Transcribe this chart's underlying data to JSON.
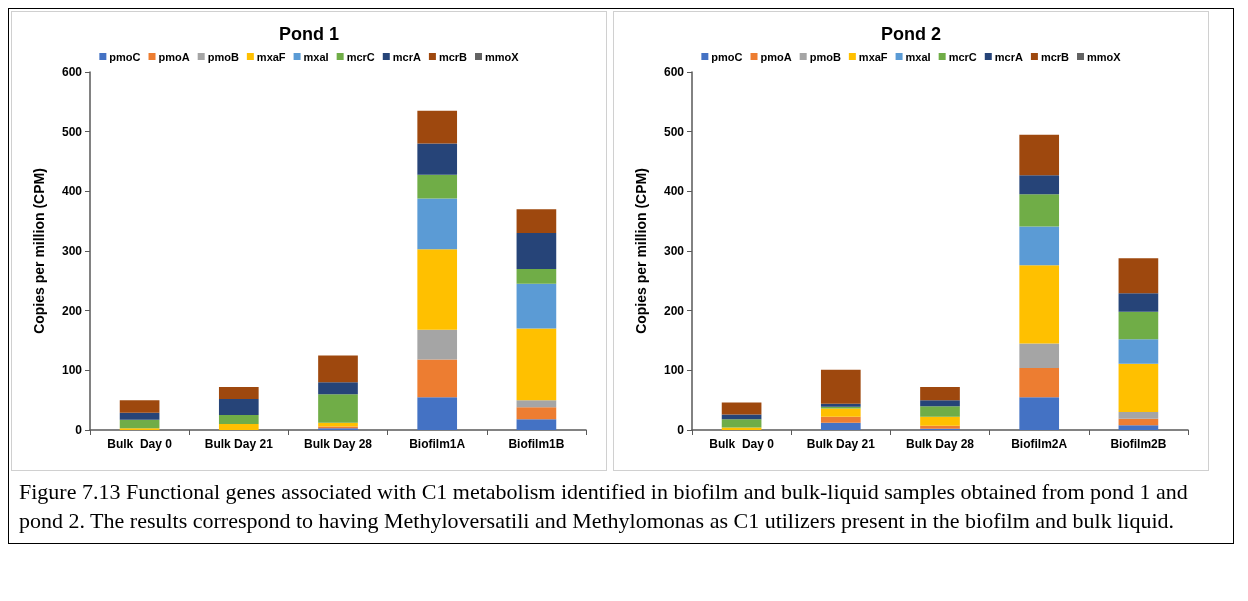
{
  "chart_data": [
    {
      "type": "bar",
      "title": "Pond 1",
      "ylabel": "Copies per million (CPM)",
      "stacked": true,
      "legend": "top",
      "grid": false,
      "categories": [
        "Bulk  Day 0",
        "Bulk Day 21",
        "Bulk Day 28",
        "Biofilm1A",
        "Biofilm1B"
      ],
      "ylim": [
        0,
        600
      ],
      "yticks": [
        0,
        100,
        200,
        300,
        400,
        500,
        600
      ],
      "series": [
        {
          "name": "pmoC",
          "color": "#4472c4",
          "values": [
            0,
            0,
            3,
            55,
            18
          ]
        },
        {
          "name": "pmoA",
          "color": "#ed7d31",
          "values": [
            0,
            0,
            3,
            63,
            20
          ]
        },
        {
          "name": "pmoB",
          "color": "#a5a5a5",
          "values": [
            0,
            0,
            null,
            50,
            12
          ]
        },
        {
          "name": "mxaF",
          "color": "#ffc000",
          "values": [
            3,
            10,
            6,
            135,
            120
          ]
        },
        {
          "name": "mxaI",
          "color": "#5b9bd5",
          "values": [
            0,
            0,
            0,
            85,
            75
          ]
        },
        {
          "name": "mcrC",
          "color": "#70ad47",
          "values": [
            14,
            15,
            48,
            40,
            25
          ]
        },
        {
          "name": "mcrA",
          "color": "#264478",
          "values": [
            12,
            27,
            20,
            52,
            60
          ]
        },
        {
          "name": "mcrB",
          "color": "#9e480e",
          "values": [
            21,
            20,
            45,
            55,
            40
          ]
        },
        {
          "name": "mmoX",
          "color": "#636363",
          "values": [
            0,
            0,
            0,
            0,
            0
          ]
        }
      ],
      "annotations": [
        "Figure 7.13 Functional genes associated with C1 metabolism identified in biofilm and bulk-liquid samples obtained from pond 1 and pond 2.  The results correspond to having Methyloversatili and Methylomonas as C1 utilizers present in the biofilm and bulk liquid."
      ]
    },
    {
      "type": "bar",
      "title": "Pond 2",
      "ylabel": "Copies per million (CPM)",
      "stacked": true,
      "legend": "top",
      "grid": false,
      "categories": [
        "Bulk  Day 0",
        "Bulk Day 21",
        "Bulk Day 28",
        "Biofilm2A",
        "Biofilm2B"
      ],
      "ylim": [
        0,
        600
      ],
      "yticks": [
        0,
        100,
        200,
        300,
        400,
        500,
        600
      ],
      "series": [
        {
          "name": "pmoC",
          "color": "#4472c4",
          "values": [
            0,
            12,
            2,
            55,
            8
          ]
        },
        {
          "name": "pmoA",
          "color": "#ed7d31",
          "values": [
            0,
            10,
            5,
            49,
            11
          ]
        },
        {
          "name": "pmoB",
          "color": "#a5a5a5",
          "values": [
            0,
            null,
            0,
            41,
            11
          ]
        },
        {
          "name": "mxaF",
          "color": "#ffc000",
          "values": [
            4,
            14,
            15,
            131,
            81
          ]
        },
        {
          "name": "mxaI",
          "color": "#5b9bd5",
          "values": [
            0,
            0,
            0,
            65,
            41
          ]
        },
        {
          "name": "mcrC",
          "color": "#70ad47",
          "values": [
            14,
            3,
            18,
            54,
            46
          ]
        },
        {
          "name": "mcrA",
          "color": "#264478",
          "values": [
            8,
            5,
            10,
            32,
            31
          ]
        },
        {
          "name": "mcrB",
          "color": "#9e480e",
          "values": [
            20,
            57,
            22,
            68,
            59
          ]
        },
        {
          "name": "mmoX",
          "color": "#636363",
          "values": [
            0,
            0,
            0,
            0,
            0
          ]
        }
      ]
    }
  ]
}
